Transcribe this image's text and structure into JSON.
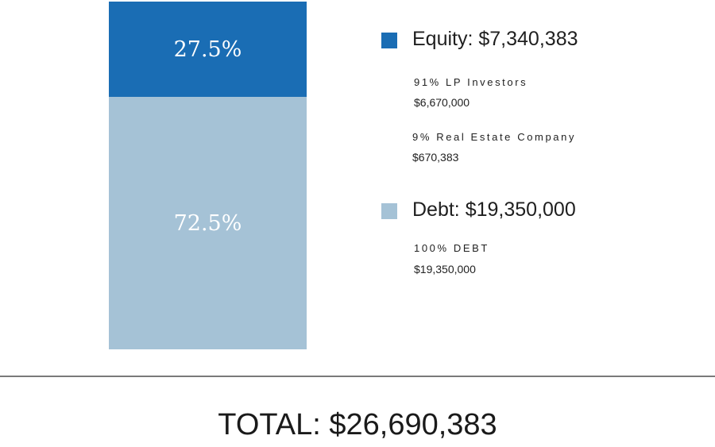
{
  "chart_data": {
    "type": "bar",
    "stacked": true,
    "segments": [
      {
        "label": "27.5%",
        "value": 27.5,
        "color": "#1a6db4"
      },
      {
        "label": "72.5%",
        "value": 72.5,
        "color": "#a5c2d6"
      }
    ],
    "legend": [
      {
        "title": "Equity: $7,340,383",
        "color": "#1a6db4",
        "items": [
          {
            "label": "91% LP Investors",
            "value": "$6,670,000"
          },
          {
            "label": "9% Real Estate Company",
            "value": "$670,383"
          }
        ]
      },
      {
        "title": "Debt: $19,350,000",
        "color": "#a5c2d6",
        "items": [
          {
            "label": "100% DEBT",
            "value": "$19,350,000"
          }
        ]
      }
    ],
    "total": "TOTAL: $26,690,383"
  }
}
